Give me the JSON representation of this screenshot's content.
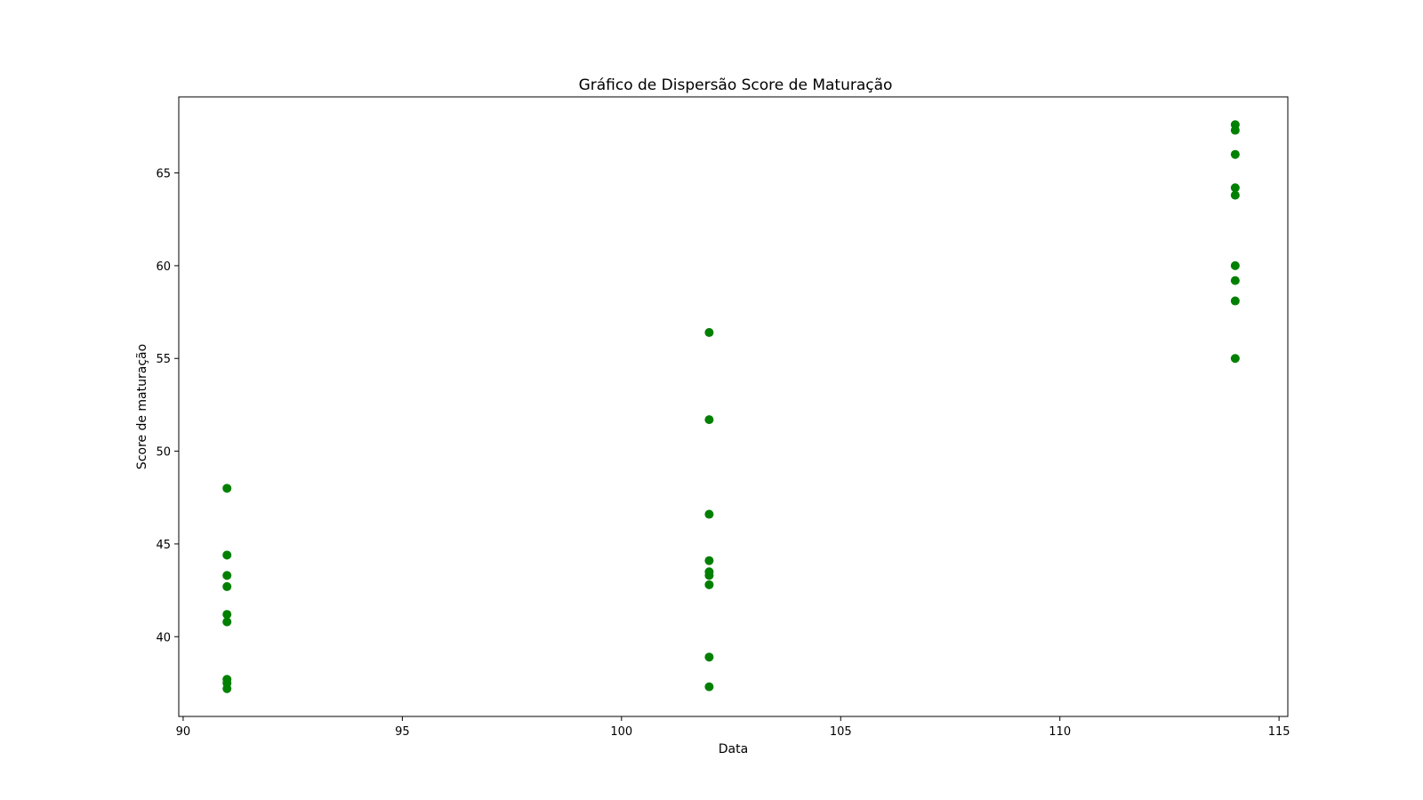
{
  "chart_data": {
    "type": "scatter",
    "title": "Gráfico de Dispersão Score de Maturação",
    "xlabel": "Data",
    "ylabel": "Score de maturação",
    "xlim": [
      89.9,
      115.2
    ],
    "ylim": [
      35.7,
      69.1
    ],
    "xticks": [
      90,
      95,
      100,
      105,
      110,
      115
    ],
    "yticks": [
      40,
      45,
      50,
      55,
      60,
      65
    ],
    "grid": false,
    "marker_color": "#008000",
    "series": [
      {
        "name": "Score de maturação",
        "points": [
          {
            "x": 91,
            "y": 48.0
          },
          {
            "x": 91,
            "y": 44.4
          },
          {
            "x": 91,
            "y": 43.3
          },
          {
            "x": 91,
            "y": 42.7
          },
          {
            "x": 91,
            "y": 41.2
          },
          {
            "x": 91,
            "y": 40.8
          },
          {
            "x": 91,
            "y": 37.7
          },
          {
            "x": 91,
            "y": 37.5
          },
          {
            "x": 91,
            "y": 37.2
          },
          {
            "x": 102,
            "y": 56.4
          },
          {
            "x": 102,
            "y": 51.7
          },
          {
            "x": 102,
            "y": 46.6
          },
          {
            "x": 102,
            "y": 44.1
          },
          {
            "x": 102,
            "y": 43.5
          },
          {
            "x": 102,
            "y": 43.3
          },
          {
            "x": 102,
            "y": 42.8
          },
          {
            "x": 102,
            "y": 38.9
          },
          {
            "x": 102,
            "y": 37.3
          },
          {
            "x": 114,
            "y": 67.6
          },
          {
            "x": 114,
            "y": 67.3
          },
          {
            "x": 114,
            "y": 66.0
          },
          {
            "x": 114,
            "y": 64.2
          },
          {
            "x": 114,
            "y": 63.8
          },
          {
            "x": 114,
            "y": 60.0
          },
          {
            "x": 114,
            "y": 59.2
          },
          {
            "x": 114,
            "y": 58.1
          },
          {
            "x": 114,
            "y": 55.0
          }
        ]
      }
    ]
  }
}
